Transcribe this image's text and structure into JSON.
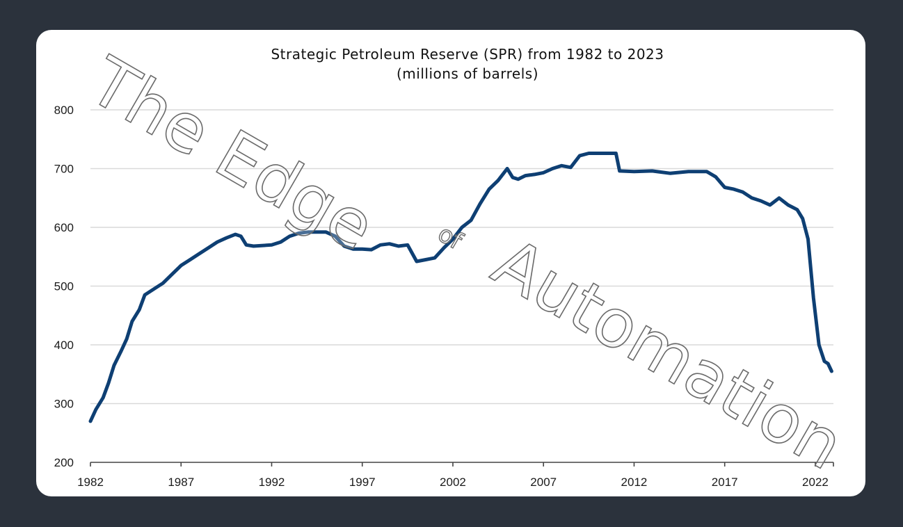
{
  "chart_data": {
    "type": "line",
    "title": "Strategic Petroleum Reserve (SPR) from 1982 to 2023",
    "subtitle": "(millions of barrels)",
    "xlabel": "",
    "ylabel": "",
    "xlim": [
      1982,
      2023
    ],
    "ylim": [
      200,
      800
    ],
    "x_ticks": [
      "1982",
      "1987",
      "1992",
      "1997",
      "2002",
      "2007",
      "2012",
      "2017",
      "2022"
    ],
    "y_ticks": [
      "200",
      "300",
      "400",
      "500",
      "600",
      "700",
      "800"
    ],
    "grid": true,
    "legend": "none",
    "series": [
      {
        "color": "#0e3f73",
        "x": [
          1982.0,
          1982.3,
          1982.7,
          1983.0,
          1983.3,
          1983.7,
          1984.0,
          1984.3,
          1984.7,
          1985.0,
          1985.5,
          1986.0,
          1986.5,
          1987.0,
          1987.5,
          1988.0,
          1988.5,
          1989.0,
          1989.5,
          1990.0,
          1990.3,
          1990.6,
          1991.0,
          1992.0,
          1992.5,
          1993.0,
          1993.5,
          1994.0,
          1995.0,
          1995.5,
          1996.0,
          1996.5,
          1997.0,
          1997.5,
          1998.0,
          1998.5,
          1999.0,
          1999.5,
          2000.0,
          2000.5,
          2001.0,
          2001.5,
          2002.0,
          2002.5,
          2003.0,
          2003.5,
          2004.0,
          2004.5,
          2005.0,
          2005.3,
          2005.6,
          2006.0,
          2006.5,
          2007.0,
          2007.5,
          2008.0,
          2008.5,
          2009.0,
          2009.5,
          2010.0,
          2010.5,
          2011.0,
          2011.2,
          2012.0,
          2013.0,
          2014.0,
          2015.0,
          2016.0,
          2016.5,
          2017.0,
          2017.5,
          2018.0,
          2018.5,
          2019.0,
          2019.5,
          2020.0,
          2020.5,
          2021.0,
          2021.3,
          2021.6,
          2021.9,
          2022.2,
          2022.5,
          2022.7,
          2022.9
        ],
        "values": [
          270,
          290,
          310,
          335,
          365,
          390,
          410,
          440,
          460,
          485,
          495,
          505,
          520,
          535,
          545,
          555,
          565,
          575,
          582,
          588,
          585,
          570,
          568,
          570,
          575,
          585,
          590,
          592,
          592,
          585,
          568,
          563,
          563,
          562,
          570,
          572,
          568,
          570,
          542,
          545,
          548,
          565,
          580,
          600,
          612,
          640,
          665,
          680,
          700,
          685,
          682,
          688,
          690,
          693,
          700,
          705,
          702,
          722,
          726,
          726,
          726,
          726,
          696,
          695,
          696,
          692,
          695,
          695,
          686,
          668,
          665,
          660,
          650,
          645,
          638,
          650,
          638,
          630,
          615,
          580,
          480,
          400,
          372,
          368,
          355
        ]
      }
    ]
  },
  "watermark": {
    "line1": "The Edge",
    "small": "of",
    "line2": "Automation"
  }
}
